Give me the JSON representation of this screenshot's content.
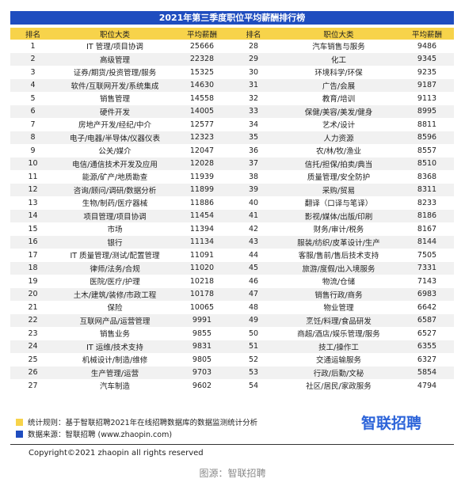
{
  "table": {
    "title": "2021年第三季度职位平均薪酬排行榜",
    "header": [
      "排名",
      "职位大类",
      "平均薪酬",
      "排名",
      "职位大类",
      "平均薪酬"
    ],
    "rows": [
      [
        1,
        "IT 管理/项目协调",
        25666,
        28,
        "汽车销售与服务",
        9486
      ],
      [
        2,
        "高级管理",
        22328,
        29,
        "化工",
        9345
      ],
      [
        3,
        "证券/期货/投资管理/服务",
        15325,
        30,
        "环境科学/环保",
        9235
      ],
      [
        4,
        "软件/互联网开发/系统集成",
        14630,
        31,
        "广告/会展",
        9187
      ],
      [
        5,
        "销售管理",
        14558,
        32,
        "教育/培训",
        9113
      ],
      [
        6,
        "硬件开发",
        14005,
        33,
        "保健/美容/美发/健身",
        8995
      ],
      [
        7,
        "房地产开发/经纪/中介",
        12577,
        34,
        "艺术/设计",
        8811
      ],
      [
        8,
        "电子/电器/半导体/仪器仪表",
        12323,
        35,
        "人力资源",
        8596
      ],
      [
        9,
        "公关/媒介",
        12047,
        36,
        "农/林/牧/渔业",
        8557
      ],
      [
        10,
        "电信/通信技术开发及应用",
        12028,
        37,
        "信托/担保/拍卖/典当",
        8510
      ],
      [
        11,
        "能源/矿产/地质勘查",
        11939,
        38,
        "质量管理/安全防护",
        8368
      ],
      [
        12,
        "咨询/顾问/调研/数据分析",
        11899,
        39,
        "采购/贸易",
        8311
      ],
      [
        13,
        "生物/制药/医疗器械",
        11886,
        40,
        "翻译（口译与笔译）",
        8233
      ],
      [
        14,
        "项目管理/项目协调",
        11454,
        41,
        "影视/媒体/出版/印刷",
        8186
      ],
      [
        15,
        "市场",
        11394,
        42,
        "财务/审计/税务",
        8167
      ],
      [
        16,
        "银行",
        11134,
        43,
        "服装/纺织/皮革设计/生产",
        8144
      ],
      [
        17,
        "IT 质量管理/测试/配置管理",
        11091,
        44,
        "客服/售前/售后技术支持",
        7505
      ],
      [
        18,
        "律师/法务/合规",
        11020,
        45,
        "旅游/度假/出入境服务",
        7331
      ],
      [
        19,
        "医院/医疗/护理",
        10218,
        46,
        "物流/仓储",
        7143
      ],
      [
        20,
        "土木/建筑/装修/市政工程",
        10178,
        47,
        "销售行政/商务",
        6983
      ],
      [
        21,
        "保险",
        10065,
        48,
        "物业管理",
        6642
      ],
      [
        22,
        "互联网产品/运营管理",
        9991,
        49,
        "烹饪/料理/食品研发",
        6587
      ],
      [
        23,
        "销售业务",
        9855,
        50,
        "商超/酒店/娱乐管理/服务",
        6527
      ],
      [
        24,
        "IT 运维/技术支持",
        9831,
        51,
        "技工/操作工",
        6355
      ],
      [
        25,
        "机械设计/制造/维修",
        9805,
        52,
        "交通运输服务",
        6327
      ],
      [
        26,
        "生产管理/运营",
        9703,
        53,
        "行政/后勤/文秘",
        5854
      ],
      [
        27,
        "汽车制造",
        9602,
        54,
        "社区/居民/家政服务",
        4794
      ]
    ]
  },
  "notes": [
    "统计规则：基于智联招聘2021年在线招聘数据库的数据监测统计分析",
    "数据来源：智联招聘 (www.zhaopin.com)"
  ],
  "logo": "智联招聘",
  "copyright": "Copyright©2021 zhaopin all rights reserved",
  "caption": "图源：智联招聘"
}
